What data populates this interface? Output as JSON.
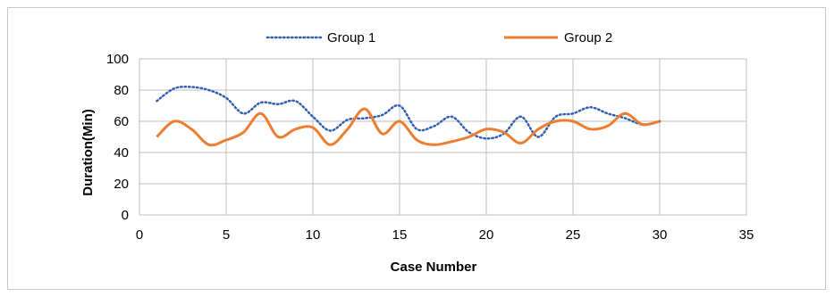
{
  "chart_data": {
    "type": "line",
    "xlabel": "Case Number",
    "ylabel": "Duration(Min)",
    "xlim": [
      0,
      35
    ],
    "ylim": [
      0,
      100
    ],
    "x_ticks": [
      0,
      5,
      10,
      15,
      20,
      25,
      30,
      35
    ],
    "y_ticks": [
      0,
      20,
      40,
      60,
      80,
      100
    ],
    "grid": true,
    "legend_position": "top",
    "x": [
      1,
      2,
      3,
      4,
      5,
      6,
      7,
      8,
      9,
      10,
      11,
      12,
      13,
      14,
      15,
      16,
      17,
      18,
      19,
      20,
      21,
      22,
      23,
      24,
      25,
      26,
      27,
      28,
      29,
      30
    ],
    "series": [
      {
        "name": "Group 1",
        "color": "#2f5fb3",
        "style": "dotted",
        "values": [
          73,
          81,
          82,
          80,
          75,
          65,
          72,
          71,
          73,
          63,
          54,
          61,
          62,
          64,
          70,
          55,
          57,
          63,
          53,
          49,
          52,
          63,
          50,
          63,
          65,
          69,
          65,
          62,
          58,
          60
        ]
      },
      {
        "name": "Group 2",
        "color": "#ed7d31",
        "style": "solid",
        "values": [
          50,
          60,
          55,
          45,
          48,
          53,
          65,
          50,
          55,
          56,
          45,
          55,
          68,
          52,
          60,
          48,
          45,
          47,
          50,
          55,
          53,
          46,
          55,
          60,
          60,
          55,
          57,
          65,
          58,
          60
        ]
      }
    ]
  }
}
